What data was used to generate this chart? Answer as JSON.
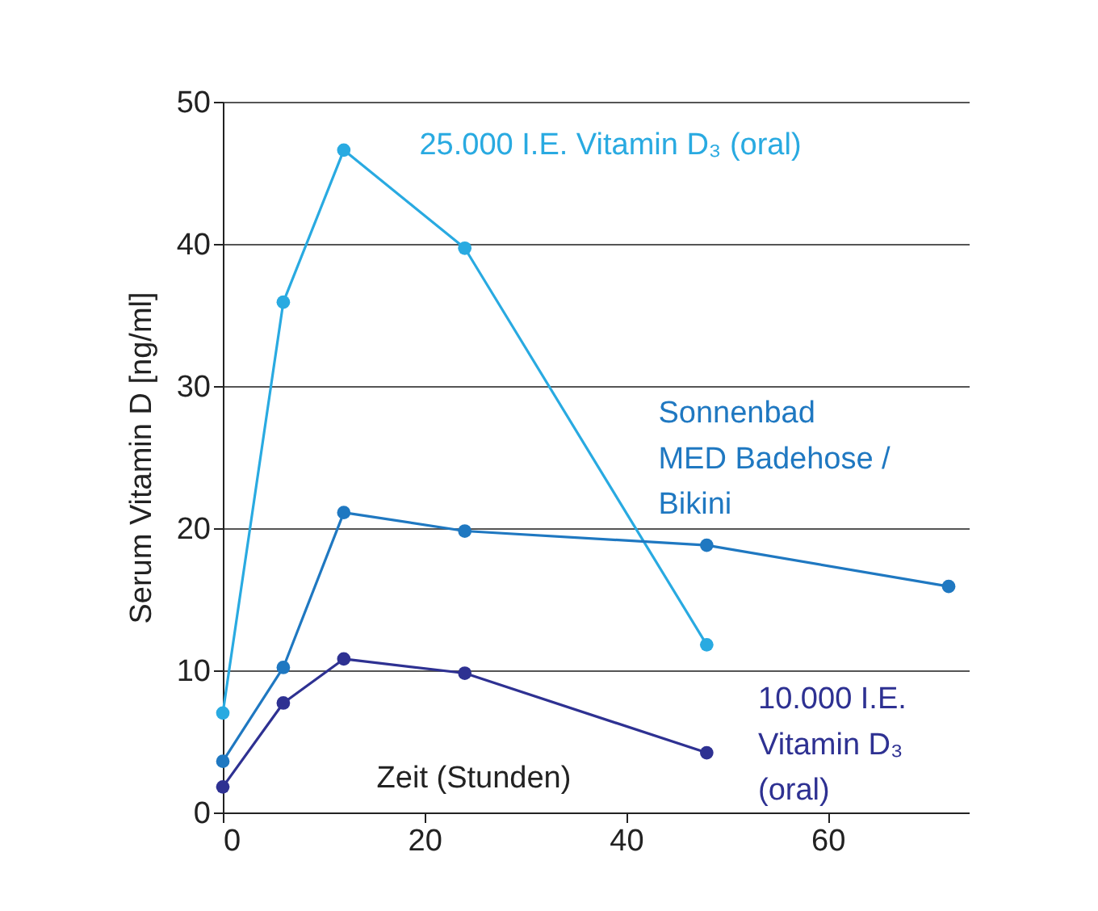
{
  "chart_data": {
    "type": "line",
    "xlabel": "Zeit (Stunden)",
    "ylabel": "Serum Vitamin D [ng/ml]",
    "xlim": [
      0,
      74
    ],
    "xticks": [
      0,
      20,
      40,
      60
    ],
    "ylim": [
      0,
      50
    ],
    "yticks": [
      0,
      10,
      20,
      30,
      40,
      50
    ],
    "grid": "y",
    "legend": false,
    "marker": "circle",
    "line_style": "solid",
    "series": [
      {
        "name": "25.000 I.E. Vitamin D₃  (oral)",
        "color": "#29aae1",
        "x": [
          0,
          6,
          12,
          24,
          48
        ],
        "values": [
          7.0,
          35.9,
          46.6,
          39.7,
          11.8
        ]
      },
      {
        "name": "Sonnenbad MED Badehose / Bikini",
        "color": "#1f78c1",
        "x": [
          0,
          6,
          12,
          24,
          48,
          72
        ],
        "values": [
          3.6,
          10.2,
          21.1,
          19.8,
          18.8,
          15.9
        ]
      },
      {
        "name": "10.000 I.E. Vitamin D₃ (oral)",
        "color": "#2e3192",
        "x": [
          0,
          6,
          12,
          24,
          48
        ],
        "values": [
          1.8,
          7.7,
          10.8,
          9.8,
          4.2
        ]
      }
    ]
  }
}
